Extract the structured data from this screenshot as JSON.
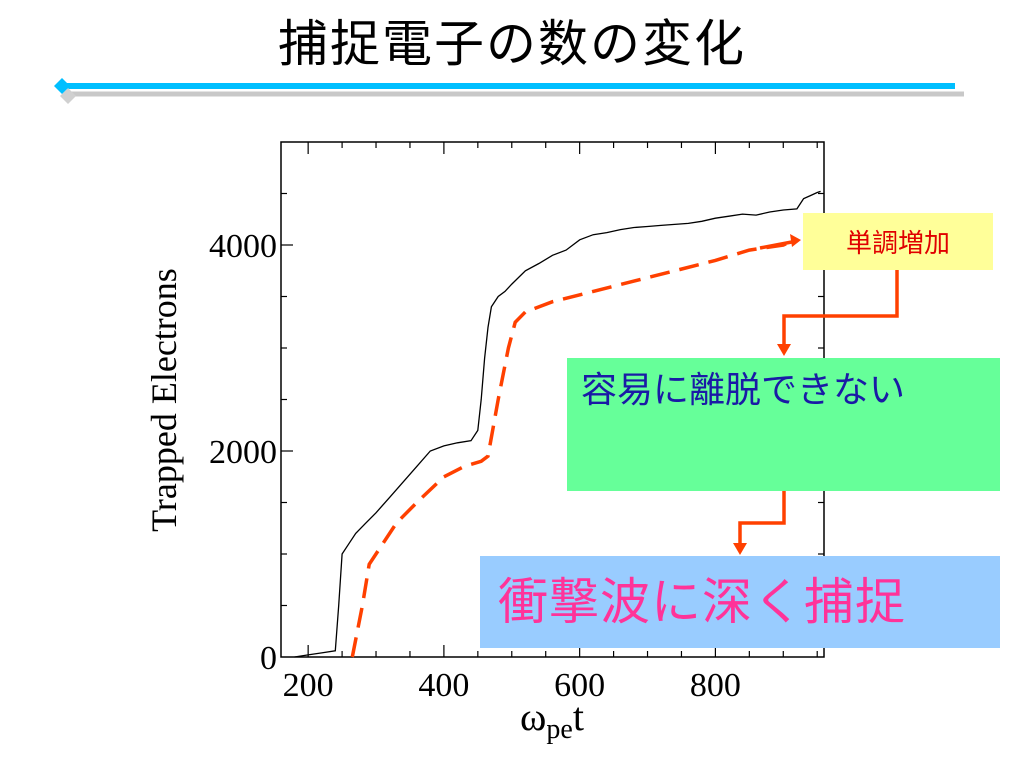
{
  "slide": {
    "title": "捕捉電子の数の変化"
  },
  "colors": {
    "title_rule": "#00bfff",
    "dashed_series": "#ff4000",
    "arrow": "#ff4000",
    "box_mono_bg": "#ffff99",
    "box_release_bg": "#66ff99",
    "box_capture_bg": "#99ccff"
  },
  "annotations": {
    "monotonic": "単調増加",
    "cannot_escape": "容易に離脱できない",
    "deep_capture": "衝撃波に深く捕捉"
  },
  "chart_data": {
    "type": "line",
    "xlabel_main": "ω",
    "xlabel_sub": "pe",
    "xlabel_tail": "t",
    "ylabel": "Trapped Electrons",
    "xlim": [
      160,
      960
    ],
    "ylim": [
      0,
      5000
    ],
    "x_ticks": [
      200,
      400,
      600,
      800
    ],
    "y_ticks": [
      0,
      2000,
      4000
    ],
    "x_tick_labels": [
      "200",
      "400",
      "600",
      "800"
    ],
    "y_tick_labels": [
      "0",
      "2000",
      "4000"
    ],
    "series": [
      {
        "style": "solid",
        "color": "#000000",
        "x": [
          180,
          200,
          220,
          240,
          245,
          250,
          260,
          270,
          285,
          300,
          320,
          340,
          360,
          380,
          400,
          420,
          440,
          450,
          455,
          460,
          465,
          470,
          480,
          490,
          500,
          520,
          540,
          560,
          580,
          600,
          620,
          640,
          660,
          680,
          700,
          720,
          740,
          760,
          780,
          800,
          820,
          840,
          860,
          880,
          900,
          920,
          930,
          940,
          950,
          955
        ],
        "y": [
          0,
          20,
          40,
          60,
          500,
          1000,
          1100,
          1200,
          1300,
          1400,
          1550,
          1700,
          1850,
          2000,
          2050,
          2080,
          2100,
          2200,
          2500,
          2900,
          3200,
          3400,
          3500,
          3550,
          3620,
          3750,
          3820,
          3900,
          3950,
          4050,
          4100,
          4120,
          4150,
          4170,
          4180,
          4190,
          4200,
          4210,
          4230,
          4260,
          4280,
          4300,
          4290,
          4320,
          4340,
          4350,
          4450,
          4480,
          4510,
          4520
        ]
      },
      {
        "style": "dashed",
        "color": "#ff4000",
        "x": [
          265,
          280,
          290,
          310,
          330,
          360,
          400,
          430,
          455,
          465,
          480,
          495,
          505,
          520,
          560,
          620,
          680,
          740,
          800,
          850,
          900,
          910
        ],
        "y": [
          0,
          500,
          900,
          1100,
          1300,
          1500,
          1750,
          1850,
          1900,
          1950,
          2500,
          3000,
          3250,
          3350,
          3450,
          3550,
          3650,
          3750,
          3850,
          3950,
          4000,
          4030
        ]
      }
    ]
  }
}
